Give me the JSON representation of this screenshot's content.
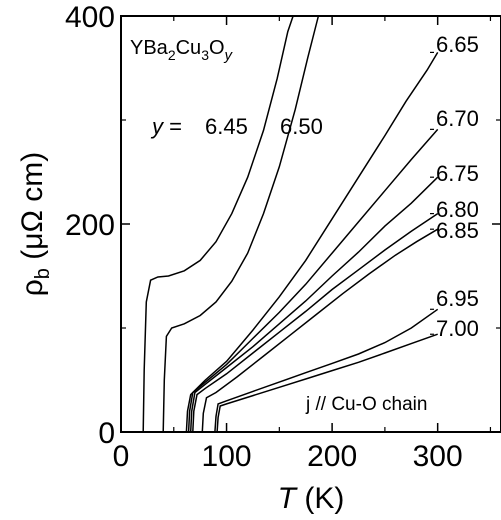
{
  "chart_data": {
    "type": "line",
    "title_parts": {
      "base": "YBa",
      "s1": "2",
      "mid1": "Cu",
      "s2": "3",
      "mid2": "O",
      "var": "y"
    },
    "xlabel": {
      "symbol": "T",
      "unit": " (K)"
    },
    "ylabel": {
      "symbol": "ρ",
      "sub": "b",
      "unit": " (μΩ cm)"
    },
    "xlim": [
      0,
      360
    ],
    "ylim": [
      0,
      400
    ],
    "xticks": [
      "0",
      "100",
      "200",
      "300"
    ],
    "yticks": [
      "0",
      "200",
      "400"
    ],
    "grid": false,
    "label_prefix": "y = ",
    "annotation": "j // Cu-O chain",
    "series": [
      {
        "name": "6.45",
        "points": [
          [
            21,
            0
          ],
          [
            22,
            60
          ],
          [
            24,
            125
          ],
          [
            28,
            146
          ],
          [
            35,
            149
          ],
          [
            45,
            150
          ],
          [
            60,
            155
          ],
          [
            75,
            165
          ],
          [
            90,
            183
          ],
          [
            105,
            210
          ],
          [
            120,
            245
          ],
          [
            135,
            290
          ],
          [
            148,
            340
          ],
          [
            158,
            385
          ],
          [
            163,
            400
          ]
        ]
      },
      {
        "name": "6.50",
        "points": [
          [
            40,
            0
          ],
          [
            41,
            50
          ],
          [
            43,
            92
          ],
          [
            48,
            100
          ],
          [
            60,
            104
          ],
          [
            75,
            112
          ],
          [
            90,
            125
          ],
          [
            105,
            145
          ],
          [
            120,
            172
          ],
          [
            135,
            210
          ],
          [
            150,
            255
          ],
          [
            165,
            310
          ],
          [
            177,
            360
          ],
          [
            187,
            400
          ]
        ]
      },
      {
        "name": "6.65",
        "points": [
          [
            62,
            0
          ],
          [
            63,
            20
          ],
          [
            66,
            36
          ],
          [
            80,
            50
          ],
          [
            100,
            68
          ],
          [
            125,
            98
          ],
          [
            150,
            130
          ],
          [
            175,
            165
          ],
          [
            200,
            205
          ],
          [
            225,
            245
          ],
          [
            250,
            285
          ],
          [
            270,
            318
          ],
          [
            290,
            348
          ],
          [
            300,
            365
          ]
        ]
      },
      {
        "name": "6.70",
        "points": [
          [
            64,
            0
          ],
          [
            65,
            20
          ],
          [
            68,
            38
          ],
          [
            80,
            48
          ],
          [
            100,
            65
          ],
          [
            125,
            90
          ],
          [
            150,
            115
          ],
          [
            175,
            142
          ],
          [
            200,
            172
          ],
          [
            225,
            202
          ],
          [
            250,
            232
          ],
          [
            275,
            262
          ],
          [
            300,
            291
          ]
        ]
      },
      {
        "name": "6.75",
        "points": [
          [
            66,
            0
          ],
          [
            67,
            20
          ],
          [
            70,
            38
          ],
          [
            80,
            46
          ],
          [
            100,
            62
          ],
          [
            125,
            82
          ],
          [
            150,
            104
          ],
          [
            175,
            126
          ],
          [
            200,
            150
          ],
          [
            225,
            173
          ],
          [
            250,
            198
          ],
          [
            275,
            220
          ],
          [
            300,
            245
          ]
        ]
      },
      {
        "name": "6.80",
        "points": [
          [
            68,
            0
          ],
          [
            69,
            20
          ],
          [
            72,
            36
          ],
          [
            80,
            42
          ],
          [
            100,
            56
          ],
          [
            125,
            76
          ],
          [
            150,
            96
          ],
          [
            175,
            116
          ],
          [
            200,
            137
          ],
          [
            225,
            156
          ],
          [
            250,
            175
          ],
          [
            275,
            193
          ],
          [
            300,
            210
          ]
        ]
      },
      {
        "name": "6.85",
        "points": [
          [
            77,
            0
          ],
          [
            78,
            18
          ],
          [
            81,
            33
          ],
          [
            90,
            38
          ],
          [
            110,
            53
          ],
          [
            135,
            73
          ],
          [
            160,
            93
          ],
          [
            185,
            113
          ],
          [
            210,
            133
          ],
          [
            235,
            152
          ],
          [
            260,
            170
          ],
          [
            280,
            183
          ],
          [
            300,
            195
          ]
        ]
      },
      {
        "name": "6.95",
        "points": [
          [
            89,
            0
          ],
          [
            90,
            15
          ],
          [
            92,
            27
          ],
          [
            100,
            30
          ],
          [
            125,
            39
          ],
          [
            150,
            48
          ],
          [
            175,
            57
          ],
          [
            200,
            66
          ],
          [
            225,
            75
          ],
          [
            250,
            86
          ],
          [
            275,
            100
          ],
          [
            300,
            118
          ]
        ]
      },
      {
        "name": "7.00",
        "points": [
          [
            91,
            0
          ],
          [
            92,
            14
          ],
          [
            94,
            25
          ],
          [
            100,
            27
          ],
          [
            125,
            35
          ],
          [
            150,
            43
          ],
          [
            175,
            51
          ],
          [
            200,
            59
          ],
          [
            225,
            67
          ],
          [
            250,
            76
          ],
          [
            275,
            85
          ],
          [
            300,
            94
          ]
        ]
      }
    ]
  }
}
